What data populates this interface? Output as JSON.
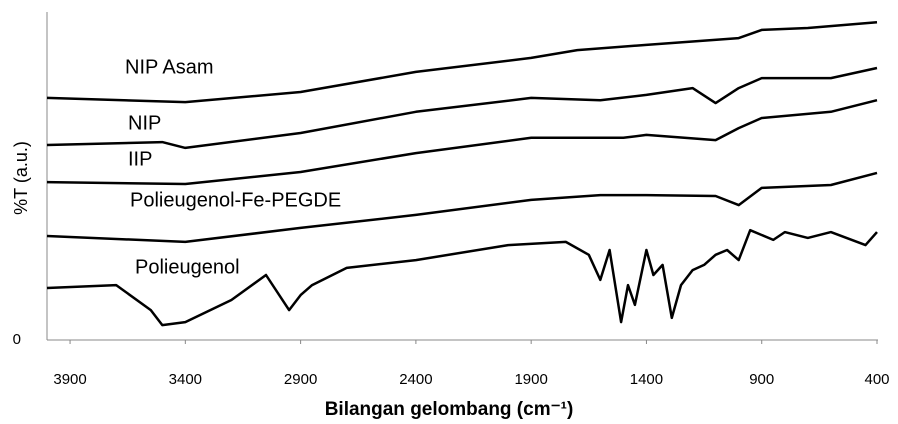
{
  "chart_data": {
    "type": "line",
    "xlabel": "Bilangan gelombang (cm⁻¹)",
    "ylabel": "%T (a.u.)",
    "xlim": [
      4000,
      400
    ],
    "xticks": [
      3900,
      3400,
      2900,
      2400,
      1900,
      1400,
      900,
      400
    ],
    "ylim": [
      0,
      100
    ],
    "yticks": [
      0
    ],
    "grid": false,
    "series": [
      {
        "name": "NIP Asam",
        "color": "#000000",
        "x": [
          4000,
          3400,
          2900,
          2400,
          1900,
          1700,
          1400,
          1000,
          900,
          700,
          400
        ],
        "values": [
          74.5,
          73.2,
          76.3,
          82.5,
          86.8,
          89.2,
          90.8,
          92.9,
          95.4,
          96,
          97.8
        ]
      },
      {
        "name": "NIP",
        "color": "#000000",
        "x": [
          4000,
          3500,
          3400,
          2900,
          2400,
          1900,
          1600,
          1400,
          1200,
          1100,
          1000,
          900,
          600,
          400
        ],
        "values": [
          60,
          60.9,
          59.1,
          63.7,
          70.2,
          74.5,
          73.8,
          75.4,
          77.5,
          72.9,
          77.5,
          80.6,
          80.6,
          83.7
        ]
      },
      {
        "name": "IIP",
        "color": "#000000",
        "x": [
          4000,
          3400,
          2900,
          2400,
          1900,
          1500,
          1400,
          1100,
          1000,
          900,
          600,
          400
        ],
        "values": [
          48.6,
          48,
          51.7,
          57.5,
          62.2,
          62.2,
          63.1,
          61.5,
          65.2,
          68.3,
          70.2,
          73.8
        ]
      },
      {
        "name": "Polieugenol-Fe-PEGDE",
        "color": "#000000",
        "x": [
          4000,
          3400,
          2900,
          2400,
          1900,
          1600,
          1400,
          1100,
          1000,
          900,
          600,
          400
        ],
        "values": [
          32,
          30.2,
          34.5,
          38.5,
          43.1,
          44.6,
          44.6,
          44.3,
          41.5,
          46.8,
          47.7,
          51.4
        ]
      },
      {
        "name": "Polieugenol",
        "color": "#000000",
        "x": [
          4000,
          3700,
          3550,
          3500,
          3400,
          3200,
          3050,
          2950,
          2900,
          2850,
          2700,
          2400,
          2000,
          1750,
          1650,
          1600,
          1560,
          1510,
          1480,
          1450,
          1400,
          1370,
          1330,
          1290,
          1250,
          1200,
          1150,
          1100,
          1050,
          1000,
          950,
          850,
          800,
          700,
          600,
          450,
          400
        ],
        "values": [
          16,
          16.9,
          9.2,
          4.6,
          5.5,
          12.3,
          20,
          9.2,
          13.8,
          16.9,
          22.2,
          24.6,
          29.2,
          30.2,
          26.2,
          18.5,
          27.7,
          5.5,
          16.9,
          10.8,
          27.7,
          20,
          23.1,
          6.8,
          16.9,
          21.5,
          23.1,
          26.2,
          27.7,
          24.6,
          33.8,
          30.8,
          33.2,
          31.4,
          33.2,
          29.2,
          33.2
        ]
      }
    ]
  }
}
